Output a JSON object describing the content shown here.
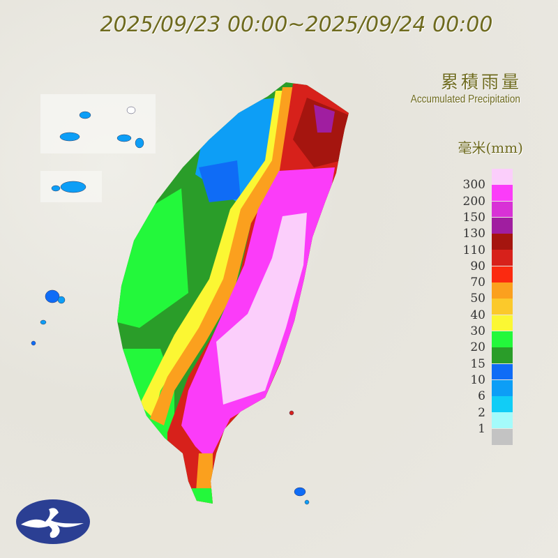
{
  "title": "2025/09/23 00:00~2025/09/24 00:00",
  "legend": {
    "title_zh": "累積雨量",
    "title_en": "Accumulated Precipitation",
    "unit": "毫米(mm)",
    "labels": [
      "300",
      "200",
      "150",
      "130",
      "110",
      "90",
      "70",
      "50",
      "40",
      "30",
      "20",
      "15",
      "10",
      "6",
      "2",
      "1"
    ],
    "colors": [
      "#fbcefb",
      "#fb3cf9",
      "#d831d6",
      "#a01ea0",
      "#a5150f",
      "#d7211b",
      "#fb2a10",
      "#fba01e",
      "#fbc92b",
      "#fbf733",
      "#23f83b",
      "#2a9d29",
      "#0f6cf6",
      "#0d9ef6",
      "#11cdf6",
      "#a4fbfb",
      "#c3c3c3"
    ]
  },
  "logo": {
    "color": "#2b3f93"
  }
}
